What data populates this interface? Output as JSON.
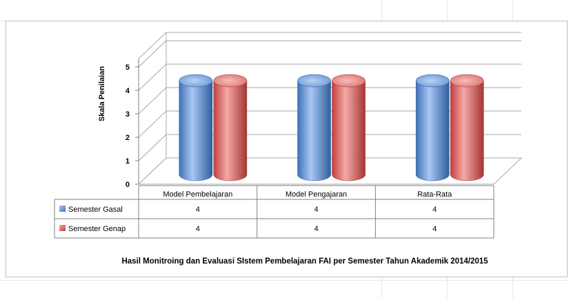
{
  "chart_data": {
    "type": "bar",
    "style": "3d-cylinder",
    "title": "Hasil Monitroing dan Evaluasi SIstem Pembelajaran FAI per Semester Tahun Akademik 2014/2015",
    "xlabel": "",
    "ylabel": "Skala Penilaian",
    "ylim": [
      0,
      5
    ],
    "yticks": [
      "0",
      "1",
      "2",
      "3",
      "4",
      "5"
    ],
    "grid": true,
    "legend": "data-table-left",
    "categories": [
      "Model Pembelajaran",
      "Model Pengajaran",
      "Rata-Rata"
    ],
    "series": [
      {
        "name": "Semester Gasal",
        "values": [
          4,
          4,
          4
        ],
        "labels": [
          "4",
          "4",
          "4"
        ],
        "color": "#4f81bd"
      },
      {
        "name": "Semester Genap",
        "values": [
          4,
          4,
          4
        ],
        "labels": [
          "4",
          "4",
          "4"
        ],
        "color": "#c0504d"
      }
    ]
  }
}
